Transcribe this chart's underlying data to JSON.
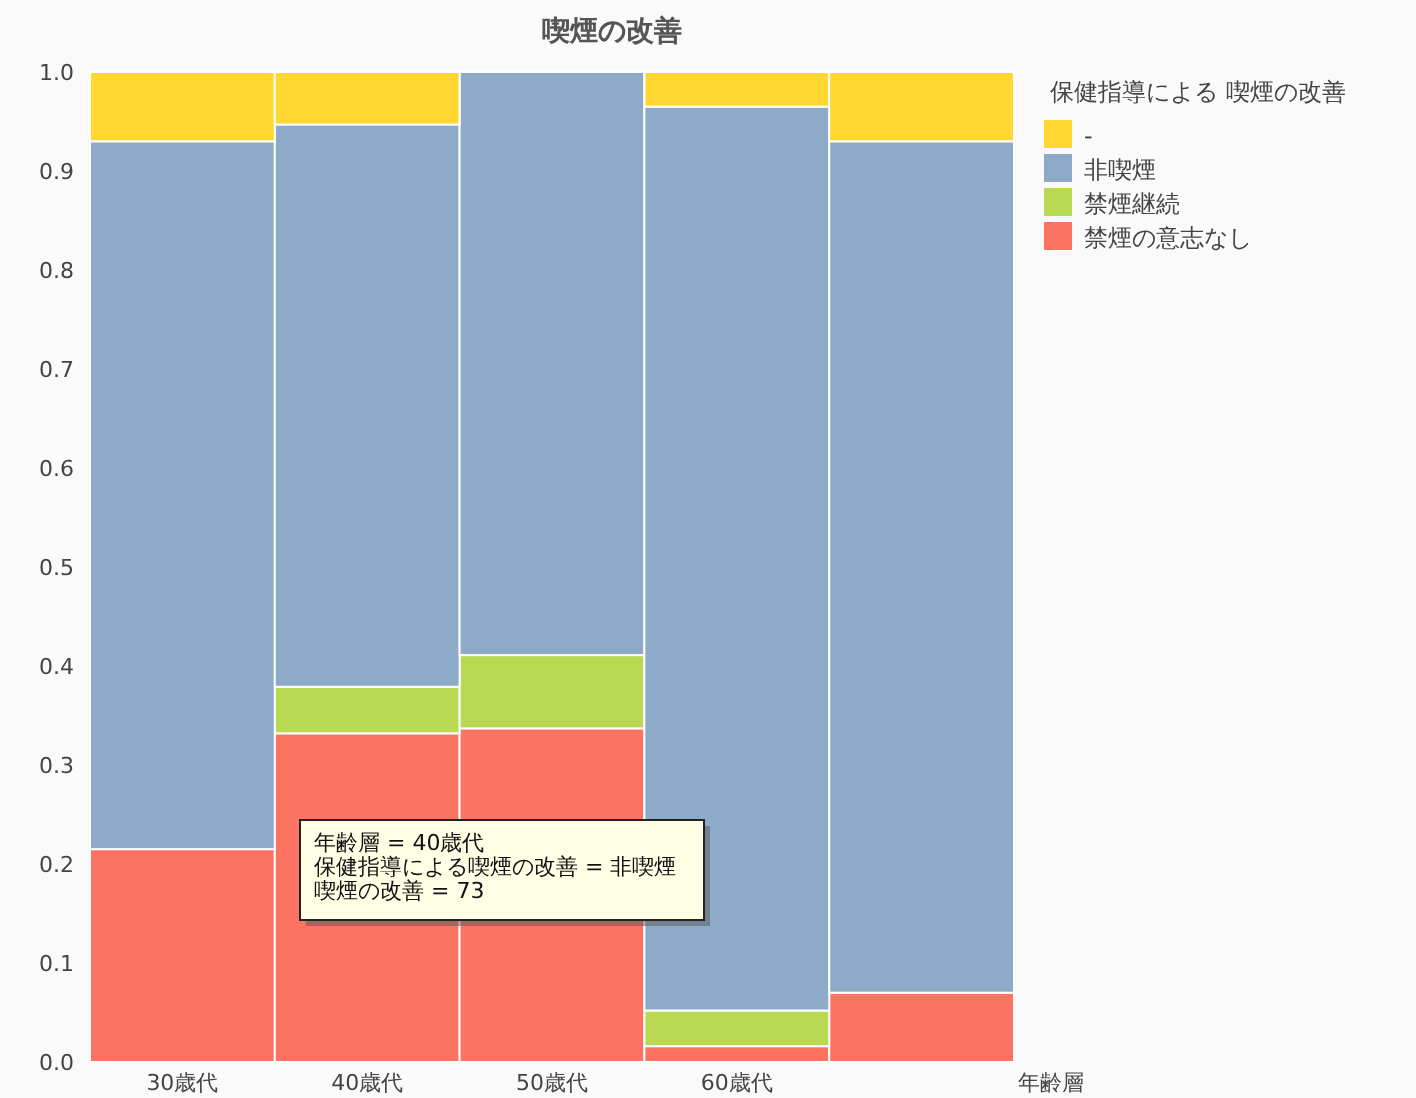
{
  "chart_data": {
    "type": "bar",
    "title": "喫煙の改善",
    "xlabel": "年齢層",
    "legend_title": "保健指導による 喫煙の改善",
    "categories": [
      "30歳代",
      "40歳代",
      "50歳代",
      "60歳代",
      null
    ],
    "stacked": true,
    "legend": "top right",
    "ylim": [
      0,
      1
    ],
    "yticks": [
      {
        "value": 0,
        "label": "0.0"
      },
      0.1,
      0.2,
      0.3,
      0.4,
      0.5,
      0.6,
      0.7,
      0.8,
      0.9,
      {
        "value": 1,
        "label": "1.0"
      }
    ],
    "series": [
      {
        "name": "禁煙の意志なし",
        "color": "#fc7362",
        "values": [
          0.215,
          0.332,
          0.337,
          0.016,
          0.07
        ]
      },
      {
        "name": "禁煙継続",
        "color": "#bad952",
        "values": [
          0,
          0.047,
          0.074,
          0.036,
          0
        ]
      },
      {
        "name": "非喫煙",
        "color": "#8eaac9",
        "values": [
          0.715,
          0.568,
          0.589,
          0.913,
          0.86
        ]
      },
      {
        "name": "-",
        "color": "#ffd730",
        "values": [
          0.07,
          0.053,
          0,
          0.035,
          0.07
        ]
      }
    ],
    "annotations": [
      "年齢層 = 40歳代",
      "保健指導による喫煙の改善 = 非喫煙",
      "喫煙の改善 = 73"
    ]
  }
}
